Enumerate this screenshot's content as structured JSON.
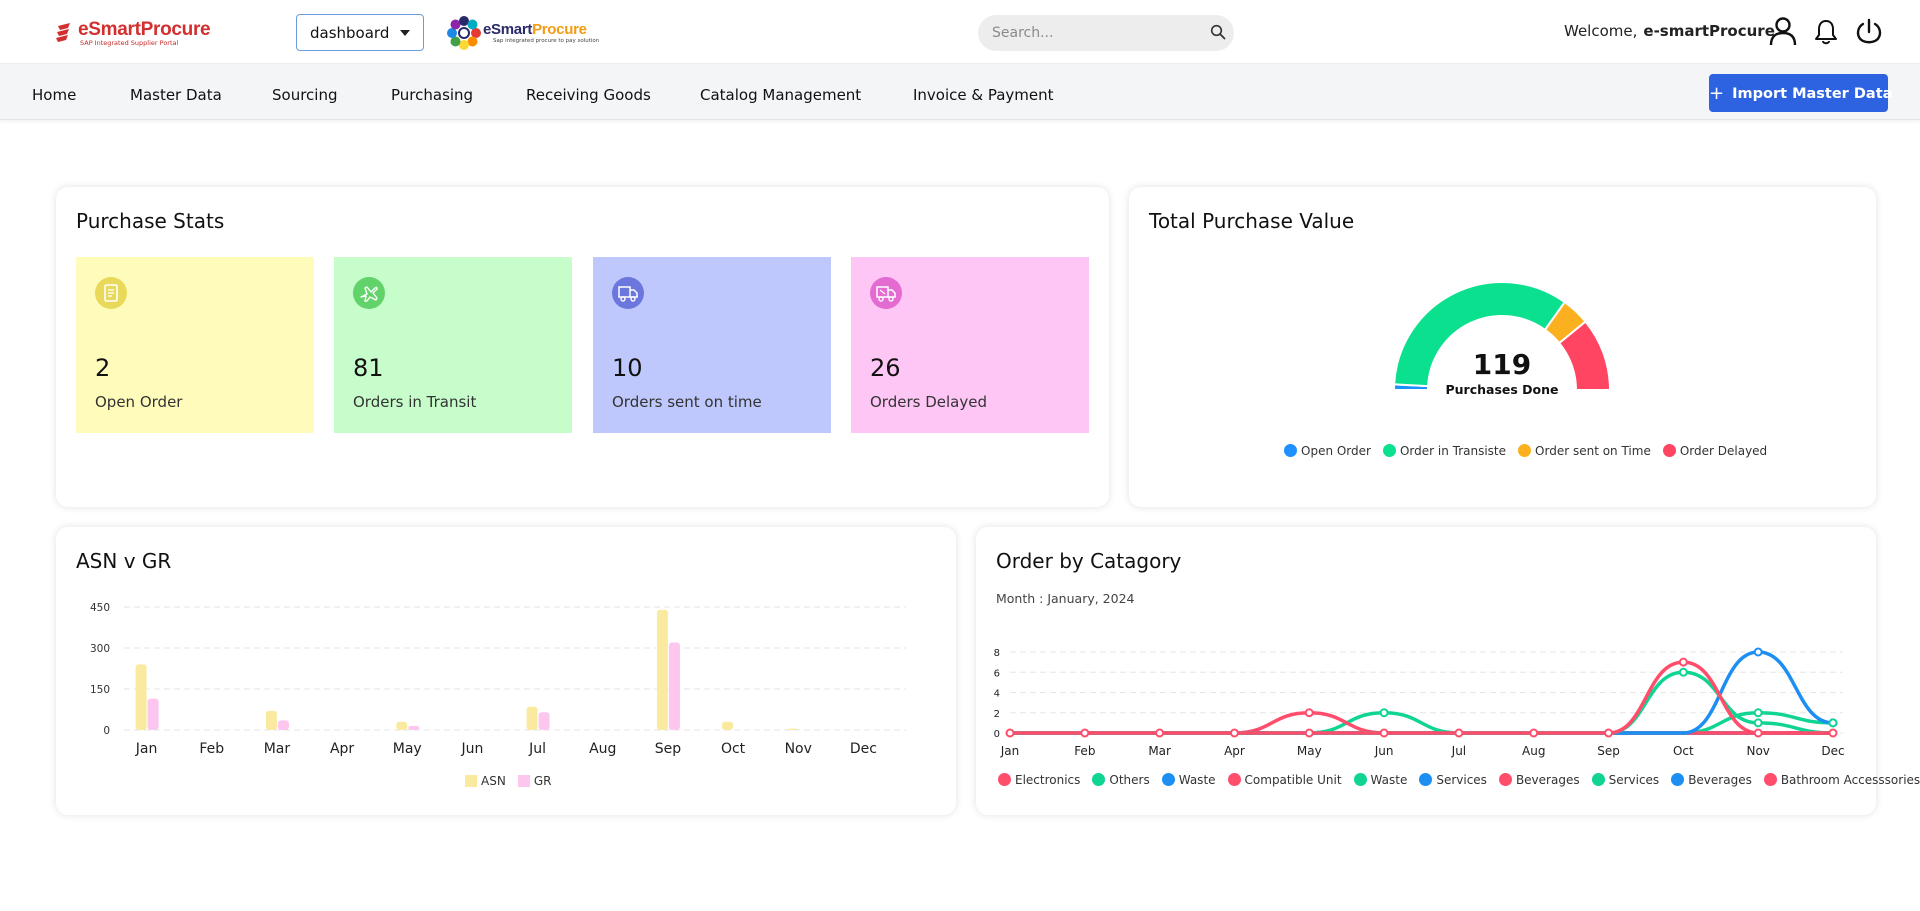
{
  "header": {
    "logo_text": "eSmartProcure",
    "logo_subtitle": "SAP Integrated Supplier Portal",
    "dashboard_select": "dashboard",
    "brand2_part1": "eSmart",
    "brand2_part2": "Procure",
    "brand2_subtitle": "Sap integrated procure to pay solution",
    "search_placeholder": "Search...",
    "welcome_label": "Welcome,",
    "username": "e-smartProcure",
    "icons": [
      "search-icon",
      "user-icon",
      "bell-icon",
      "power-icon"
    ]
  },
  "nav": {
    "items": [
      "Home",
      "Master Data",
      "Sourcing",
      "Purchasing",
      "Receiving Goods",
      "Catalog Management",
      "Invoice & Payment"
    ],
    "import_button": "Import Master Data"
  },
  "purchase_stats": {
    "title": "Purchase Stats",
    "cards": [
      {
        "value": "2",
        "label": "Open Order",
        "bg": "#fffcbb",
        "icon_bg": "#e8d95a",
        "icon": "document-icon"
      },
      {
        "value": "81",
        "label": "Orders in Transit",
        "bg": "#c7fdcb",
        "icon_bg": "#62d36b",
        "icon": "airplane-icon"
      },
      {
        "value": "10",
        "label": "Orders sent on time",
        "bg": "#bec8fc",
        "icon_bg": "#6c77de",
        "icon": "truck-icon"
      },
      {
        "value": "26",
        "label": "Orders Delayed",
        "bg": "#fec6f4",
        "icon_bg": "#e36bd2",
        "icon": "truck-delayed-icon"
      }
    ]
  },
  "total_purchase": {
    "title": "Total Purchase Value",
    "center_value": "119",
    "center_label": "Purchases Done"
  },
  "asn_title": "ASN v GR",
  "category_title": "Order by Catagory",
  "category_subtitle": "Month : January, 2024",
  "chart_data": [
    {
      "type": "pie",
      "variant": "semi-donut",
      "title": "Total Purchase Value",
      "labels": [
        "Open Order",
        "Order in Transiste",
        "Order sent on Time",
        "Order Delayed"
      ],
      "values": [
        2,
        81,
        10,
        26
      ],
      "colors": [
        "#1e90ff",
        "#0be08f",
        "#fbb11f",
        "#ff4561"
      ],
      "legend": "bottom"
    },
    {
      "type": "bar",
      "title": "ASN v GR",
      "categories": [
        "Jan",
        "Feb",
        "Mar",
        "Apr",
        "May",
        "Jun",
        "Jul",
        "Aug",
        "Sep",
        "Oct",
        "Nov",
        "Dec"
      ],
      "series": [
        {
          "name": "ASN",
          "values": [
            240,
            0,
            70,
            0,
            30,
            0,
            85,
            0,
            440,
            30,
            5,
            0
          ],
          "color": "#faeaa0"
        },
        {
          "name": "GR",
          "values": [
            115,
            0,
            35,
            0,
            15,
            0,
            65,
            0,
            320,
            0,
            0,
            0
          ],
          "color": "#fcc6ef"
        }
      ],
      "yticks": [
        0,
        150,
        300,
        450
      ],
      "ylim": [
        0,
        450
      ],
      "grid": true,
      "legend": "bottom"
    },
    {
      "type": "line",
      "title": "Order by Catagory",
      "subtitle": "Month : January, 2024",
      "categories": [
        "Jan",
        "Feb",
        "Mar",
        "Apr",
        "May",
        "Jun",
        "Jul",
        "Aug",
        "Sep",
        "Oct",
        "Nov",
        "Dec"
      ],
      "series": [
        {
          "name": "Electronics",
          "color": "#ff4d6b",
          "values": [
            0,
            0,
            0,
            0,
            0,
            0,
            0,
            0,
            0,
            7,
            0,
            0
          ]
        },
        {
          "name": "Others",
          "color": "#10d492",
          "values": [
            0,
            0,
            0,
            0,
            0,
            0,
            0,
            0,
            0,
            6,
            1,
            0
          ]
        },
        {
          "name": "Waste",
          "color": "#1e8ff2",
          "values": [
            0,
            0,
            0,
            0,
            0,
            0,
            0,
            0,
            0,
            0,
            8,
            1
          ]
        },
        {
          "name": "Compatible Unit",
          "color": "#ff4d6b",
          "values": [
            0,
            0,
            0,
            0,
            2,
            0,
            0,
            0,
            0,
            0,
            0,
            0
          ]
        },
        {
          "name": "Waste",
          "color": "#10d492",
          "values": [
            0,
            0,
            0,
            0,
            0,
            2,
            0,
            0,
            0,
            0,
            2,
            1
          ]
        },
        {
          "name": "Services",
          "color": "#1e8ff2",
          "values": [
            0,
            0,
            0,
            0,
            0,
            0,
            0,
            0,
            0,
            0,
            0,
            0
          ]
        },
        {
          "name": "Beverages",
          "color": "#ff4d6b",
          "values": [
            0,
            0,
            0,
            0,
            0,
            0,
            0,
            0,
            0,
            0,
            0,
            0
          ]
        },
        {
          "name": "Services",
          "color": "#10d492",
          "values": [
            0,
            0,
            0,
            0,
            0,
            0,
            0,
            0,
            0,
            0,
            0,
            0
          ]
        },
        {
          "name": "Beverages",
          "color": "#1e8ff2",
          "values": [
            0,
            0,
            0,
            0,
            0,
            0,
            0,
            0,
            0,
            0,
            0,
            0
          ]
        },
        {
          "name": "Bathroom Accesssories",
          "color": "#ff4d6b",
          "values": [
            0,
            0,
            0,
            0,
            0,
            0,
            0,
            0,
            0,
            0,
            0,
            0
          ]
        }
      ],
      "yticks": [
        0,
        2,
        4,
        6,
        8
      ],
      "ylim": [
        0,
        8
      ],
      "grid": true,
      "legend": "bottom"
    }
  ]
}
